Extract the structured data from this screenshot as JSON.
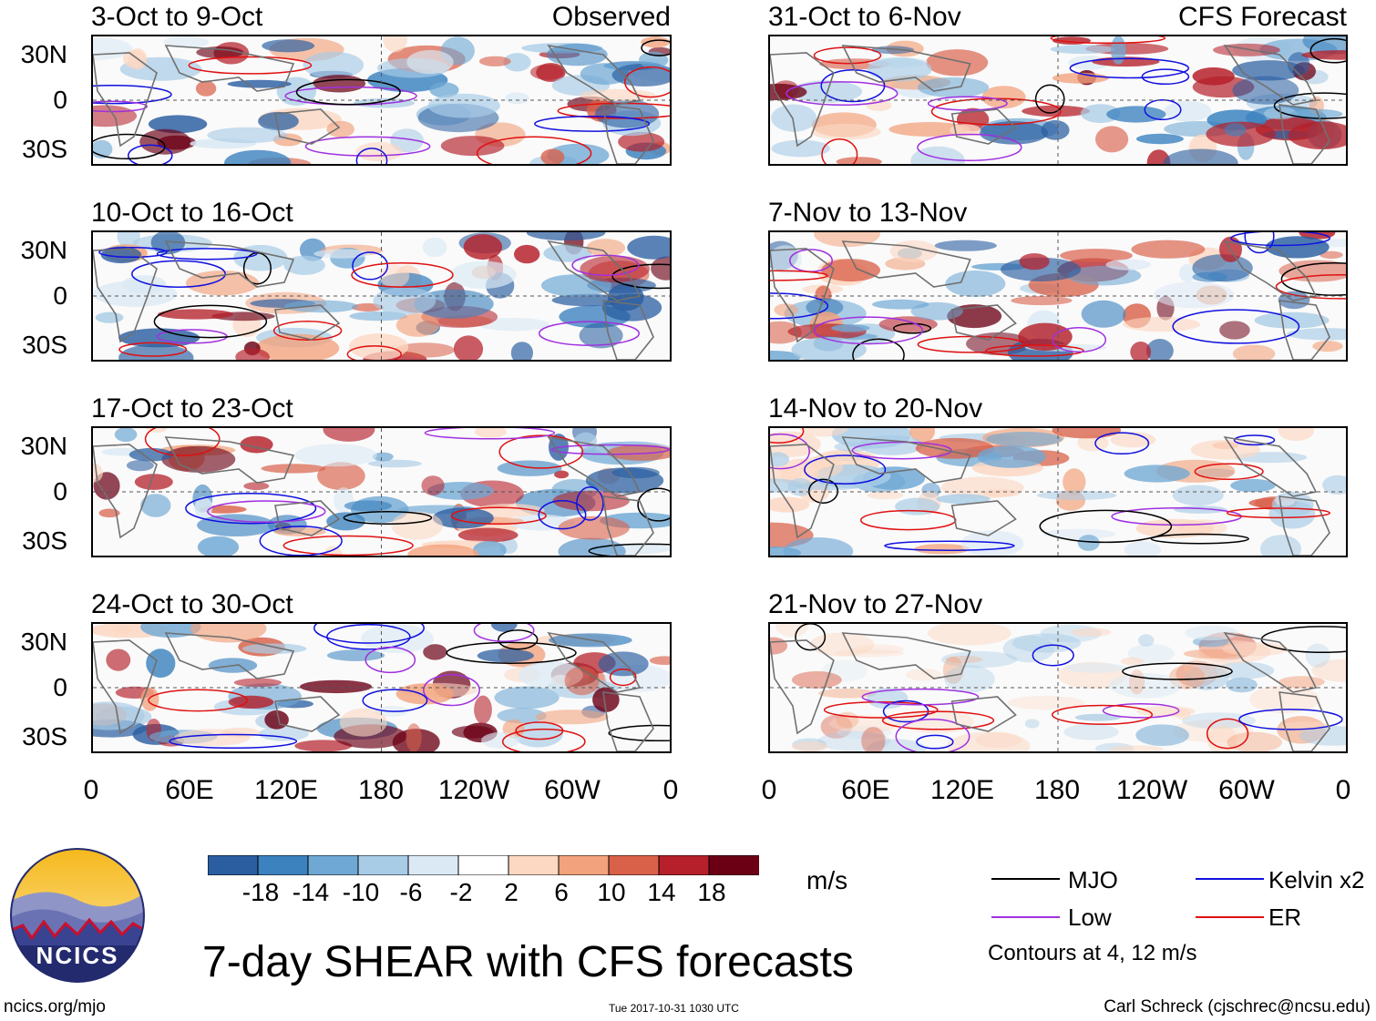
{
  "chart_data": {
    "type": "heatmap",
    "title": "7-day SHEAR with CFS forecasts",
    "units": "m/s",
    "x_ticks": [
      "0",
      "60E",
      "120E",
      "180",
      "120W",
      "60W",
      "0"
    ],
    "y_ticks": [
      "30N",
      "0",
      "30S"
    ],
    "observed_label": "Observed",
    "forecast_label": "CFS Forecast",
    "observed_panels": [
      {
        "title": "3-Oct to 9-Oct"
      },
      {
        "title": "10-Oct to 16-Oct"
      },
      {
        "title": "17-Oct to 23-Oct"
      },
      {
        "title": "24-Oct to 30-Oct"
      }
    ],
    "forecast_panels": [
      {
        "title": "31-Oct to 6-Nov"
      },
      {
        "title": "7-Nov to 13-Nov"
      },
      {
        "title": "14-Nov to 20-Nov"
      },
      {
        "title": "21-Nov to 27-Nov"
      }
    ],
    "colorbar": {
      "labels": [
        "-18",
        "-14",
        "-10",
        "-6",
        "-2",
        "2",
        "6",
        "10",
        "14",
        "18"
      ],
      "colors": [
        "#1a2f5e",
        "#2a5ea1",
        "#3b82bf",
        "#6fa8d4",
        "#a9cce6",
        "#dbe9f4",
        "#ffffff",
        "#fcd7c2",
        "#f2a27c",
        "#d9614a",
        "#b5202a",
        "#6b0015"
      ]
    },
    "legend": [
      {
        "label": "MJO",
        "color": "#000000"
      },
      {
        "label": "Kelvin x2",
        "color": "#1010e0"
      },
      {
        "label": "Low",
        "color": "#a030e0"
      },
      {
        "label": "ER",
        "color": "#e01010"
      }
    ],
    "contour_note": "Contours at 4, 12 m/s"
  },
  "logo": {
    "text": "NCICS"
  },
  "footer": {
    "left": "ncics.org/mjo",
    "center": "Tue 2017-10-31 1030 UTC",
    "right": "Carl Schreck (cjschrec@ncsu.edu)"
  }
}
